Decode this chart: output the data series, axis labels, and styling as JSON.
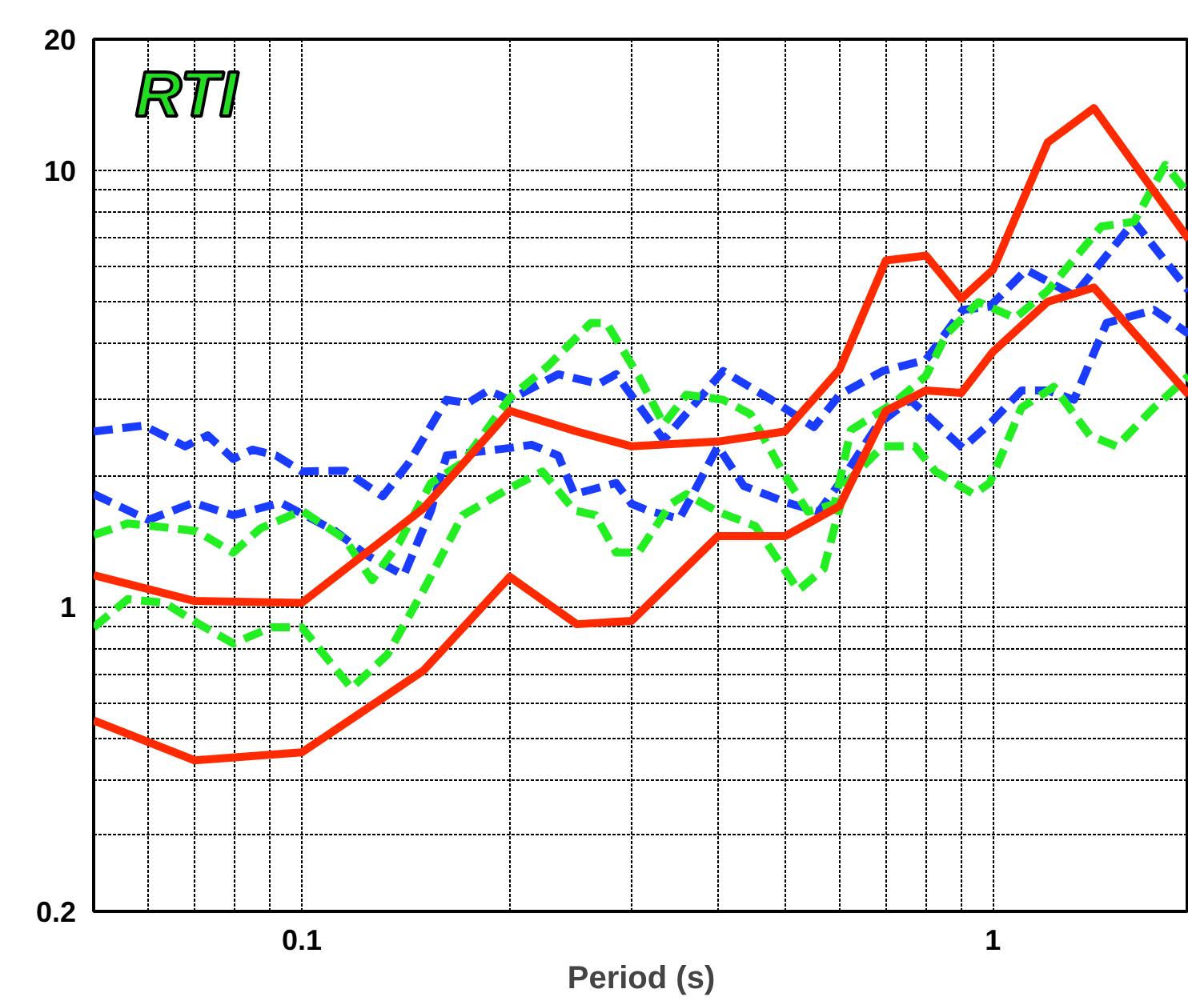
{
  "chart_data": {
    "type": "line",
    "xlabel": "Period (s)",
    "annotations": [
      "RTI"
    ],
    "log": "xy",
    "grid": true,
    "xlim": [
      0.05,
      1.92
    ],
    "ylim": [
      0.2,
      20
    ],
    "xticks": [
      {
        "value": 0.06,
        "label": null
      },
      {
        "value": 0.07,
        "label": null
      },
      {
        "value": 0.08,
        "label": null
      },
      {
        "value": 0.09,
        "label": null
      },
      0.1,
      {
        "value": 0.2,
        "label": null
      },
      {
        "value": 0.3,
        "label": null
      },
      {
        "value": 0.4,
        "label": null
      },
      {
        "value": 0.5,
        "label": null
      },
      {
        "value": 0.6,
        "label": null
      },
      {
        "value": 0.7,
        "label": null
      },
      {
        "value": 0.8,
        "label": null
      },
      {
        "value": 0.9,
        "label": null
      },
      1
    ],
    "yticks": [
      0.2,
      {
        "value": 0.3,
        "label": null
      },
      {
        "value": 0.4,
        "label": null
      },
      {
        "value": 0.5,
        "label": null
      },
      {
        "value": 0.6,
        "label": null
      },
      {
        "value": 0.7,
        "label": null
      },
      {
        "value": 0.8,
        "label": null
      },
      {
        "value": 0.9,
        "label": null
      },
      1,
      {
        "value": 2,
        "label": null
      },
      {
        "value": 3,
        "label": null
      },
      {
        "value": 4,
        "label": null
      },
      {
        "value": 5,
        "label": null
      },
      {
        "value": 6,
        "label": null
      },
      {
        "value": 7,
        "label": null
      },
      {
        "value": 8,
        "label": null
      },
      {
        "value": 9,
        "label": null
      },
      10,
      20
    ],
    "series": [
      {
        "color": "#1a3cff",
        "line_style": "dashed",
        "x": [
          0.05,
          0.0591,
          0.0678,
          0.0731,
          0.0796,
          0.0848,
          0.0918,
          0.1,
          0.1154,
          0.131,
          0.143,
          0.162,
          0.174,
          0.186,
          0.2,
          0.235,
          0.269,
          0.285,
          0.334,
          0.407,
          0.478,
          0.551,
          0.6,
          0.693,
          0.8,
          0.904,
          0.989,
          1.117,
          1.31,
          1.6,
          1.92
        ],
        "values": [
          2.52,
          2.6,
          2.33,
          2.47,
          2.18,
          2.29,
          2.22,
          2.04,
          2.05,
          1.79,
          2.14,
          2.98,
          2.93,
          3.13,
          2.98,
          3.41,
          3.24,
          3.41,
          2.41,
          3.47,
          2.98,
          2.58,
          3.06,
          3.47,
          3.68,
          4.79,
          4.87,
          5.92,
          5.17,
          7.63,
          5.3
        ]
      },
      {
        "color": "#1a3cff",
        "line_style": "dashed",
        "x": [
          0.05,
          0.06,
          0.0697,
          0.0796,
          0.0933,
          0.1118,
          0.1243,
          0.1405,
          0.1538,
          0.162,
          0.2,
          0.215,
          0.235,
          0.248,
          0.285,
          0.3,
          0.317,
          0.352,
          0.372,
          0.4,
          0.436,
          0.504,
          0.56,
          0.6,
          0.682,
          0.759,
          0.8,
          0.904,
          0.995,
          1.1,
          1.2,
          1.31,
          1.46,
          1.71,
          1.92
        ],
        "values": [
          1.81,
          1.58,
          1.73,
          1.62,
          1.73,
          1.49,
          1.31,
          1.18,
          1.66,
          2.22,
          2.31,
          2.35,
          2.22,
          1.81,
          1.92,
          1.72,
          1.66,
          1.59,
          1.87,
          2.33,
          1.89,
          1.73,
          1.65,
          1.92,
          2.62,
          2.98,
          2.76,
          2.31,
          2.65,
          3.13,
          3.13,
          2.98,
          4.47,
          4.79,
          4.22
        ]
      },
      {
        "color": "#22ee22",
        "line_style": "dashed",
        "x": [
          0.05,
          0.056,
          0.061,
          0.0704,
          0.0796,
          0.0871,
          0.1,
          0.1154,
          0.1264,
          0.1383,
          0.1538,
          0.171,
          0.2,
          0.227,
          0.262,
          0.276,
          0.307,
          0.334,
          0.36,
          0.407,
          0.446,
          0.496,
          0.54,
          0.59,
          0.623,
          0.719,
          0.8,
          0.857,
          0.953,
          1.077,
          1.2,
          1.435,
          1.6,
          1.775,
          1.92
        ],
        "values": [
          1.46,
          1.55,
          1.53,
          1.49,
          1.33,
          1.51,
          1.66,
          1.43,
          1.15,
          1.4,
          1.92,
          2.14,
          3.01,
          3.56,
          4.47,
          4.47,
          3.38,
          2.62,
          3.06,
          2.98,
          2.76,
          2.04,
          1.65,
          1.72,
          2.54,
          2.93,
          3.38,
          4.22,
          4.99,
          4.59,
          5.3,
          7.44,
          7.63,
          10.3,
          8.81
        ]
      },
      {
        "color": "#22ee22",
        "line_style": "dashed",
        "x": [
          0.05,
          0.056,
          0.0633,
          0.0704,
          0.0796,
          0.0904,
          0.1,
          0.118,
          0.133,
          0.15,
          0.171,
          0.2,
          0.223,
          0.248,
          0.266,
          0.285,
          0.307,
          0.342,
          0.36,
          0.4,
          0.453,
          0.523,
          0.569,
          0.613,
          0.693,
          0.771,
          0.826,
          0.938,
          0.989,
          1.1,
          1.225,
          1.38,
          1.51,
          1.71,
          1.92
        ],
        "values": [
          0.896,
          1.04,
          1.02,
          0.919,
          0.823,
          0.896,
          0.896,
          0.65,
          0.776,
          1.09,
          1.62,
          1.87,
          2.04,
          1.66,
          1.62,
          1.33,
          1.33,
          1.72,
          1.81,
          1.65,
          1.53,
          1.09,
          1.22,
          1.92,
          2.33,
          2.33,
          2.04,
          1.81,
          1.92,
          2.86,
          3.19,
          2.47,
          2.33,
          2.86,
          3.38
        ]
      },
      {
        "color": "#ff2a00",
        "line_style": "solid",
        "x": [
          0.05,
          0.07,
          0.1,
          0.15,
          0.2,
          0.25,
          0.3,
          0.4,
          0.5,
          0.6,
          0.7,
          0.8,
          0.9,
          1,
          1.2,
          1.4,
          1.92
        ],
        "values": [
          1.18,
          1.03,
          1.02,
          1.68,
          2.81,
          2.52,
          2.33,
          2.39,
          2.52,
          3.5,
          6.22,
          6.38,
          5.08,
          5.92,
          11.6,
          13.9,
          6.95
        ]
      },
      {
        "color": "#ff2a00",
        "line_style": "solid",
        "x": [
          0.05,
          0.07,
          0.1,
          0.15,
          0.2,
          0.25,
          0.3,
          0.4,
          0.5,
          0.6,
          0.7,
          0.8,
          0.9,
          1,
          1.2,
          1.4,
          1.92
        ],
        "values": [
          0.548,
          0.444,
          0.463,
          0.713,
          1.17,
          0.911,
          0.927,
          1.45,
          1.45,
          1.7,
          2.81,
          3.13,
          3.09,
          3.84,
          5.0,
          5.39,
          3.06
        ]
      }
    ]
  }
}
